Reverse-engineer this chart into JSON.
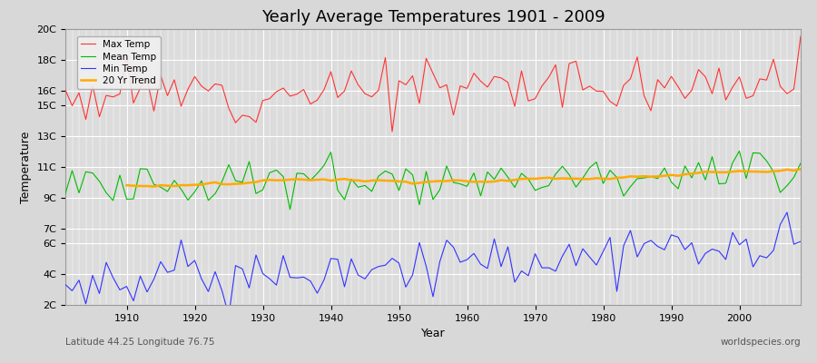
{
  "title": "Yearly Average Temperatures 1901 - 2009",
  "xlabel": "Year",
  "ylabel": "Temperature",
  "footnote_left": "Latitude 44.25 Longitude 76.75",
  "footnote_right": "worldspecies.org",
  "bg_color": "#d8d8d8",
  "plot_bg_color": "#dcdcdc",
  "grid_color": "#ffffff",
  "years_start": 1901,
  "years_end": 2009,
  "ytick_positions": [
    2,
    4,
    6,
    7,
    9,
    11,
    13,
    15,
    16,
    18,
    20
  ],
  "ytick_labels": [
    "2C",
    "4C",
    "6C",
    "7C",
    "9C",
    "11C",
    "13C",
    "15C",
    "16C",
    "18C",
    "20C"
  ],
  "xticks": [
    1910,
    1920,
    1930,
    1940,
    1950,
    1960,
    1970,
    1980,
    1990,
    2000
  ],
  "max_temp_color": "#ff3333",
  "mean_temp_color": "#00bb00",
  "min_temp_color": "#3333ff",
  "trend_color": "#ffaa00",
  "legend_labels": [
    "Max Temp",
    "Mean Temp",
    "Min Temp",
    "20 Yr Trend"
  ],
  "ylim": [
    2,
    20
  ],
  "xlim": [
    1901,
    2009
  ]
}
